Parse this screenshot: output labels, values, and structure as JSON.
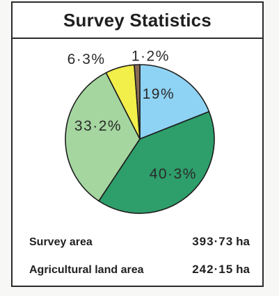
{
  "title": "Survey Statistics",
  "chart_data": {
    "type": "pie",
    "title": "Survey Statistics",
    "slices": [
      {
        "label": "19%",
        "value": 19.0,
        "color": "#8fd3f4"
      },
      {
        "label": "40·3%",
        "value": 40.3,
        "color": "#2e9e6a"
      },
      {
        "label": "33·2%",
        "value": 33.2,
        "color": "#a5d6a0"
      },
      {
        "label": "6·3%",
        "value": 6.3,
        "color": "#f2ee4a"
      },
      {
        "label": "1·2%",
        "value": 1.2,
        "color": "#8a6c55"
      }
    ]
  },
  "stats": {
    "survey_area_label": "Survey area",
    "survey_area_value": "393·73",
    "survey_area_unit": "ha",
    "agri_area_label": "Agricultural land area",
    "agri_area_value": "242·15",
    "agri_area_unit": "ha"
  }
}
